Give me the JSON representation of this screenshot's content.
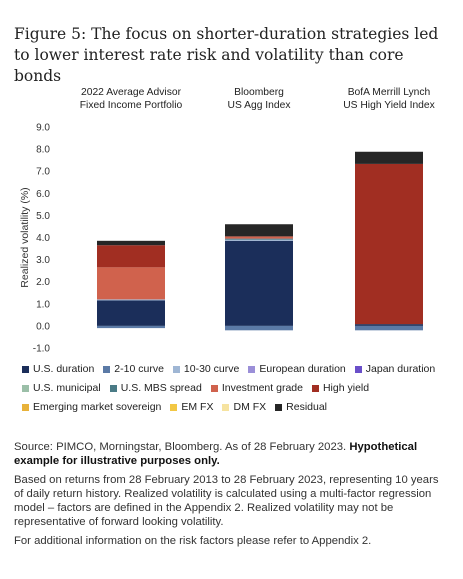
{
  "figure_title": "Figure 5: The focus on shorter-duration strategies led to lower interest rate risk and volatility than core bonds",
  "chart_data": {
    "type": "bar",
    "stacked": true,
    "categories": [
      [
        "2022 Average Advisor",
        "Fixed Income Portfolio"
      ],
      [
        "Bloomberg",
        "US Agg Index"
      ],
      [
        "BofA Merrill Lynch",
        "US High Yield Index"
      ]
    ],
    "ylabel": "Realized volatility (%)",
    "ylim": [
      -1.0,
      9.0
    ],
    "yticks": [
      -1.0,
      0.0,
      1.0,
      2.0,
      3.0,
      4.0,
      5.0,
      6.0,
      7.0,
      8.0,
      9.0
    ],
    "grid": false,
    "series": [
      {
        "name": "U.S. duration",
        "color": "#1b2e5a",
        "values": [
          1.15,
          3.85,
          0.08
        ]
      },
      {
        "name": "2-10 curve",
        "color": "#5b7aa6",
        "values": [
          -0.1,
          -0.2,
          -0.2
        ]
      },
      {
        "name": "10-30 curve",
        "color": "#9fb6d4",
        "values": [
          0.05,
          0.05,
          0.0
        ]
      },
      {
        "name": "European duration",
        "color": "#9b8fd8",
        "values": [
          0.0,
          0.0,
          0.0
        ]
      },
      {
        "name": "Japan duration",
        "color": "#6a4fc9",
        "values": [
          0.0,
          0.0,
          0.0
        ]
      },
      {
        "name": "U.S. municipal",
        "color": "#9bbfa8",
        "values": [
          0.0,
          0.0,
          0.0
        ]
      },
      {
        "name": "U.S. MBS spread",
        "color": "#4a7b86",
        "values": [
          0.0,
          0.05,
          0.0
        ]
      },
      {
        "name": "Investment grade",
        "color": "#d0624d",
        "values": [
          1.45,
          0.1,
          0.0
        ]
      },
      {
        "name": "High yield",
        "color": "#a12e22",
        "values": [
          1.0,
          0.0,
          7.25
        ]
      },
      {
        "name": "Emerging market sovereign",
        "color": "#e8b23a",
        "values": [
          0.0,
          0.0,
          0.0
        ]
      },
      {
        "name": "EM FX",
        "color": "#f2c744",
        "values": [
          0.0,
          0.0,
          0.0
        ]
      },
      {
        "name": "DM FX",
        "color": "#f6e3a0",
        "values": [
          0.0,
          0.0,
          0.0
        ]
      },
      {
        "name": "Residual",
        "color": "#262626",
        "values": [
          0.2,
          0.55,
          0.55
        ]
      }
    ],
    "legend_position": "bottom"
  },
  "legend_rows": [
    [
      0,
      1,
      2,
      3,
      4
    ],
    [
      5,
      6,
      7,
      8
    ],
    [
      9,
      10,
      11,
      12
    ]
  ],
  "notes": {
    "source": "Source: PIMCO, Morningstar, Bloomberg. As of 28 February 2023.",
    "source_bold": "Hypothetical example for illustrative purposes only.",
    "methodology": "Based on returns from 28 February 2013 to 28 February 2023, representing 10 years of daily return history. Realized volatility is calculated using a multi-factor regression model – factors are defined in the Appendix 2. Realized volatility may not be representative of forward looking volatility.",
    "additional": "For additional information on the risk factors please refer to Appendix 2."
  }
}
